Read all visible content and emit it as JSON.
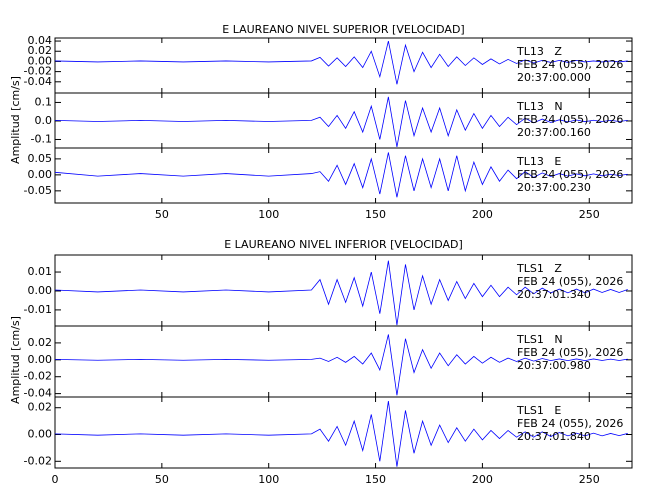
{
  "chart_data": [
    {
      "type": "line",
      "title": "E LAUREANO NIVEL SUPERIOR [VELOCIDAD]",
      "y_label": "Amplitud [cm/s]",
      "color": "#0000ff",
      "xlim": [
        0,
        270
      ],
      "xticks": [
        50,
        100,
        150,
        200,
        250
      ],
      "x": [
        0,
        20,
        40,
        60,
        80,
        100,
        120,
        124,
        128,
        132,
        136,
        140,
        144,
        148,
        152,
        156,
        160,
        164,
        168,
        172,
        176,
        180,
        184,
        188,
        192,
        196,
        200,
        204,
        208,
        212,
        216,
        220,
        224,
        228,
        232,
        236,
        240,
        244,
        248,
        252,
        256,
        260,
        264,
        268
      ],
      "panels": [
        {
          "annotations": [
            "TL13   Z",
            "FEB 24 (055), 2026",
            "20:37:00.000"
          ],
          "ylim": [
            -0.062,
            0.046
          ],
          "yticks": [
            0.04,
            0.02,
            {
              "value": 0,
              "label": "0.00"
            },
            -0.02,
            -0.04
          ],
          "values": [
            0.001,
            -0.001,
            0.001,
            -0.001,
            0.001,
            -0.001,
            0.001,
            0.008,
            -0.009,
            0.007,
            -0.01,
            0.009,
            -0.012,
            0.02,
            -0.03,
            0.04,
            -0.045,
            0.032,
            -0.02,
            0.018,
            -0.012,
            0.014,
            -0.01,
            0.009,
            -0.008,
            0.007,
            -0.006,
            0.005,
            -0.005,
            0.004,
            -0.004,
            0.003,
            -0.003,
            0.002,
            -0.002,
            0.002,
            -0.002,
            0.002,
            -0.001,
            0.001,
            -0.001,
            0.001,
            -0.001,
            0.001
          ]
        },
        {
          "annotations": [
            "TL13   N",
            "FEB 24 (055), 2026",
            "20:37:00.160"
          ],
          "ylim": [
            -0.146,
            0.151
          ],
          "yticks": [
            0.1,
            {
              "value": 0,
              "label": "0.0"
            },
            -0.1
          ],
          "values": [
            0.003,
            -0.003,
            0.003,
            -0.003,
            0.003,
            -0.003,
            0.003,
            0.02,
            -0.03,
            0.03,
            -0.04,
            0.05,
            -0.06,
            0.08,
            -0.1,
            0.13,
            -0.14,
            0.11,
            -0.08,
            0.07,
            -0.06,
            0.07,
            -0.08,
            0.06,
            -0.05,
            0.04,
            -0.04,
            0.03,
            -0.03,
            0.02,
            -0.02,
            0.015,
            -0.01,
            0.01,
            -0.008,
            0.006,
            -0.005,
            0.005,
            -0.004,
            0.004,
            -0.003,
            0.003,
            -0.003,
            0.003
          ]
        },
        {
          "annotations": [
            "TL13   E",
            "FEB 24 (055), 2026",
            "20:37:00.230"
          ],
          "ylim": [
            -0.088,
            0.084
          ],
          "yticks": [
            0.05,
            {
              "value": 0,
              "label": "0.00"
            },
            -0.05
          ],
          "values": [
            0.008,
            -0.004,
            0.004,
            -0.004,
            0.004,
            -0.004,
            0.004,
            0.01,
            -0.02,
            0.03,
            -0.03,
            0.035,
            -0.04,
            0.05,
            -0.06,
            0.07,
            -0.07,
            0.06,
            -0.05,
            0.05,
            -0.04,
            0.05,
            -0.05,
            0.06,
            -0.05,
            0.04,
            -0.03,
            0.025,
            -0.02,
            0.015,
            -0.012,
            0.01,
            -0.008,
            0.006,
            -0.005,
            0.004,
            -0.004,
            0.003,
            -0.003,
            0.003,
            -0.003,
            0.002,
            -0.002,
            0.002
          ]
        }
      ]
    },
    {
      "type": "line",
      "title": "E LAUREANO NIVEL INFERIOR [VELOCIDAD]",
      "y_label": "Amplitud [cm/s]",
      "color": "#0000ff",
      "xlim": [
        0,
        270
      ],
      "xticks": [
        0,
        50,
        100,
        150,
        200,
        250
      ],
      "x": [
        0,
        20,
        40,
        60,
        80,
        100,
        120,
        124,
        128,
        132,
        136,
        140,
        144,
        148,
        152,
        156,
        160,
        164,
        168,
        172,
        176,
        180,
        184,
        188,
        192,
        196,
        200,
        204,
        208,
        212,
        216,
        220,
        224,
        228,
        232,
        236,
        240,
        244,
        248,
        252,
        256,
        260,
        264,
        268
      ],
      "panels": [
        {
          "annotations": [
            "TLS1   Z",
            "FEB 24 (055), 2026",
            "20:37:01.340"
          ],
          "ylim": [
            -0.0185,
            0.019
          ],
          "yticks": [
            0.01,
            {
              "value": 0,
              "label": "0.00"
            },
            -0.01
          ],
          "values": [
            0.0005,
            -0.0005,
            0.0005,
            -0.0005,
            0.0005,
            -0.0005,
            0.0005,
            0.006,
            -0.007,
            0.006,
            -0.006,
            0.007,
            -0.008,
            0.01,
            -0.012,
            0.016,
            -0.018,
            0.014,
            -0.01,
            0.008,
            -0.007,
            0.006,
            -0.005,
            0.005,
            -0.004,
            0.004,
            -0.003,
            0.003,
            -0.003,
            0.002,
            -0.002,
            0.002,
            -0.0015,
            0.0015,
            -0.001,
            0.001,
            -0.001,
            0.001,
            -0.001,
            0.001,
            -0.0008,
            0.0008,
            -0.0008,
            0.0008
          ]
        },
        {
          "annotations": [
            "TLS1   N",
            "FEB 24 (055), 2026",
            "20:37:00.980"
          ],
          "ylim": [
            -0.044,
            0.04
          ],
          "yticks": [
            0.02,
            {
              "value": 0,
              "label": "0.00"
            },
            -0.02,
            -0.04
          ],
          "values": [
            0.0005,
            -0.0005,
            0.0005,
            -0.0005,
            0.0005,
            -0.0005,
            0.0005,
            0.002,
            -0.002,
            0.003,
            -0.003,
            0.004,
            -0.005,
            0.008,
            -0.012,
            0.03,
            -0.042,
            0.025,
            -0.015,
            0.012,
            -0.01,
            0.008,
            -0.007,
            0.006,
            -0.005,
            0.004,
            -0.004,
            0.003,
            -0.003,
            0.002,
            -0.002,
            0.002,
            -0.0015,
            0.0015,
            -0.001,
            0.001,
            -0.001,
            0.001,
            -0.001,
            0.001,
            -0.0008,
            0.0008,
            -0.0008,
            0.0008
          ]
        },
        {
          "annotations": [
            "TLS1   E",
            "FEB 24 (055), 2026",
            "20:37:01.840"
          ],
          "ylim": [
            -0.025,
            0.028
          ],
          "yticks": [
            0.02,
            {
              "value": 0,
              "label": "0.00"
            },
            -0.02
          ],
          "values": [
            0.0005,
            -0.0005,
            0.0005,
            -0.0005,
            0.0005,
            -0.0005,
            0.0005,
            0.004,
            -0.005,
            0.006,
            -0.008,
            0.01,
            -0.012,
            0.015,
            -0.02,
            0.025,
            -0.024,
            0.018,
            -0.014,
            0.01,
            -0.008,
            0.007,
            -0.006,
            0.005,
            -0.005,
            0.004,
            -0.004,
            0.003,
            -0.003,
            0.003,
            -0.002,
            0.002,
            -0.002,
            0.002,
            -0.0015,
            0.0015,
            -0.001,
            0.001,
            -0.001,
            0.001,
            -0.001,
            0.0008,
            -0.0008,
            0.0008
          ]
        }
      ]
    }
  ]
}
